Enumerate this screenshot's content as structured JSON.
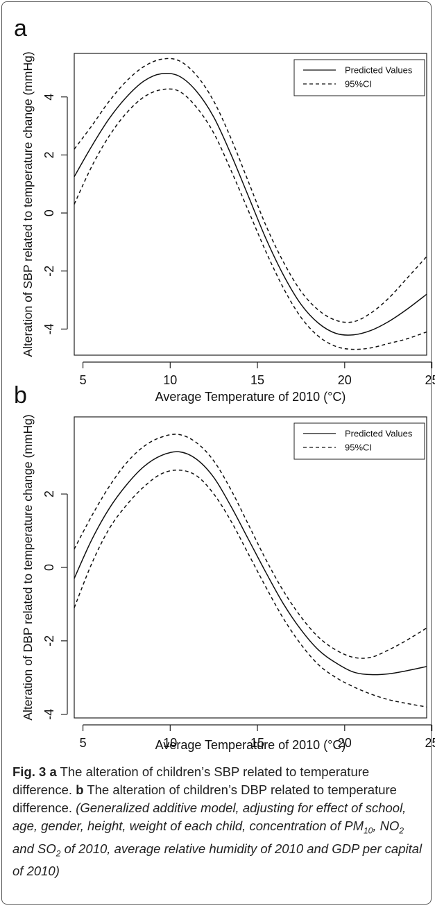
{
  "chart_data": [
    {
      "type": "line",
      "panel_label": "a",
      "xlabel": "Average Temperature of 2010 (°C)",
      "ylabel": "Alteration of SBP related to temperature change (mmHg)",
      "xlim": [
        4.5,
        24.7
      ],
      "ylim": [
        -4.9,
        5.5
      ],
      "xticks": [
        "5",
        "10",
        "15",
        "20",
        "25"
      ],
      "yticks": [
        "-4",
        "-2",
        "0",
        "2",
        "4"
      ],
      "legend_position": "top-right",
      "x": [
        4.5,
        5.5,
        6.5,
        7.5,
        8.5,
        9.5,
        10.5,
        11.5,
        12.5,
        13.5,
        14.5,
        15.5,
        16.5,
        17.5,
        18.5,
        19.5,
        20.5,
        21.5,
        22.5,
        23.5,
        24.7
      ],
      "series": [
        {
          "name": "Predicted Values",
          "style": "solid",
          "values": [
            1.25,
            2.3,
            3.25,
            4.0,
            4.55,
            4.8,
            4.72,
            4.2,
            3.3,
            2.0,
            0.55,
            -0.9,
            -2.15,
            -3.15,
            -3.8,
            -4.15,
            -4.2,
            -4.05,
            -3.75,
            -3.35,
            -2.8
          ]
        },
        {
          "name": "95%CI",
          "style": "dashed",
          "values": [
            2.2,
            3.0,
            3.85,
            4.55,
            5.05,
            5.3,
            5.25,
            4.75,
            3.85,
            2.55,
            1.05,
            -0.45,
            -1.7,
            -2.7,
            -3.35,
            -3.7,
            -3.75,
            -3.45,
            -2.95,
            -2.3,
            -1.5
          ]
        },
        {
          "name": "",
          "style": "dashed",
          "values": [
            0.3,
            1.6,
            2.65,
            3.45,
            4.0,
            4.25,
            4.2,
            3.65,
            2.75,
            1.45,
            0.05,
            -1.35,
            -2.6,
            -3.6,
            -4.25,
            -4.6,
            -4.7,
            -4.65,
            -4.5,
            -4.35,
            -4.1
          ]
        }
      ]
    },
    {
      "type": "line",
      "panel_label": "b",
      "xlabel": "Average Temperature of 2010 (°C)",
      "ylabel": "Alteration of DBP related to temperature change (mmHg)",
      "xlim": [
        4.5,
        24.7
      ],
      "ylim": [
        -4.1,
        4.1
      ],
      "xticks": [
        "5",
        "10",
        "15",
        "20",
        "25"
      ],
      "yticks": [
        "-4",
        "-2",
        "0",
        "2"
      ],
      "legend_position": "top-right",
      "x": [
        4.5,
        5.5,
        6.5,
        7.5,
        8.5,
        9.5,
        10.5,
        11.5,
        12.5,
        13.5,
        14.5,
        15.5,
        16.5,
        17.5,
        18.5,
        19.5,
        20.5,
        21.5,
        22.5,
        23.5,
        24.7
      ],
      "series": [
        {
          "name": "Predicted Values",
          "style": "solid",
          "values": [
            -0.3,
            0.75,
            1.6,
            2.25,
            2.75,
            3.05,
            3.15,
            2.95,
            2.45,
            1.65,
            0.75,
            -0.15,
            -1.0,
            -1.7,
            -2.25,
            -2.6,
            -2.85,
            -2.92,
            -2.9,
            -2.82,
            -2.7
          ]
        },
        {
          "name": "95%CI",
          "style": "dashed",
          "values": [
            0.5,
            1.4,
            2.2,
            2.85,
            3.3,
            3.55,
            3.62,
            3.4,
            2.9,
            2.1,
            1.15,
            0.2,
            -0.65,
            -1.35,
            -1.9,
            -2.25,
            -2.45,
            -2.45,
            -2.25,
            -2.0,
            -1.65
          ]
        },
        {
          "name": "",
          "style": "dashed",
          "values": [
            -1.1,
            0.1,
            1.05,
            1.7,
            2.2,
            2.55,
            2.65,
            2.5,
            2.0,
            1.25,
            0.35,
            -0.55,
            -1.4,
            -2.1,
            -2.65,
            -3.0,
            -3.25,
            -3.45,
            -3.6,
            -3.7,
            -3.8
          ]
        }
      ]
    }
  ],
  "caption": {
    "fig_label": "Fig. 3",
    "a_letter": "a",
    "a_text": " The alteration of children’s SBP related to temperature difference. ",
    "b_letter": "b",
    "b_text": " The alteration of children’s DBP related to temperature difference. ",
    "note_1": "(Generalized additive model, adjusting for effect of school, age, gender, height, weight of each child, concentration of PM",
    "sub_pm": "10",
    "note_2": ", NO",
    "sub_no": "2",
    "note_3": " and SO",
    "sub_so": "2",
    "note_4": " of 2010, average relative humidity of 2010 and GDP per capital of 2010)"
  }
}
